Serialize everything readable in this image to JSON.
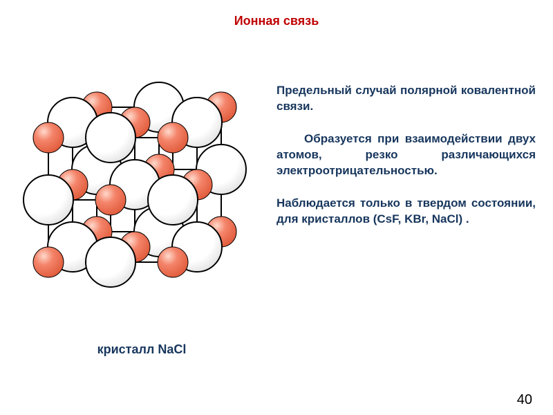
{
  "title": {
    "text": "Ионная связь",
    "color": "#c00000",
    "fontsize": 18
  },
  "diagram": {
    "type": "network",
    "caption": "кристалл NaCl",
    "caption_color": "#17365d",
    "caption_fontsize": 18,
    "background": "#ffffff",
    "grid": {
      "nx": 3,
      "ny": 3,
      "nz": 3,
      "spacing": 90
    },
    "projection": {
      "dx_per_z": -35,
      "dy_per_z": 22
    },
    "large": {
      "radius": 36,
      "fill": "#ffffff",
      "stroke": "#000000",
      "stroke_width": 2
    },
    "small": {
      "radius": 22,
      "fill": "#f4846a",
      "stroke": "#000000",
      "stroke_width": 1,
      "shade": "#e05a3a"
    },
    "edge": {
      "color": "#000000",
      "width": 2
    }
  },
  "body": {
    "text_color": "#17365d",
    "fontsize": 17,
    "paragraphs": [
      "Предельный случай полярной ковалентной связи.",
      "Образуется при взаимодействии двух атомов, резко различающихся электроотрицательностью.",
      "Наблюдается только в твердом состоянии, для кристаллов (CsF, KBr, NaCl) ."
    ]
  },
  "page_number": "40",
  "page_number_color": "#000000"
}
